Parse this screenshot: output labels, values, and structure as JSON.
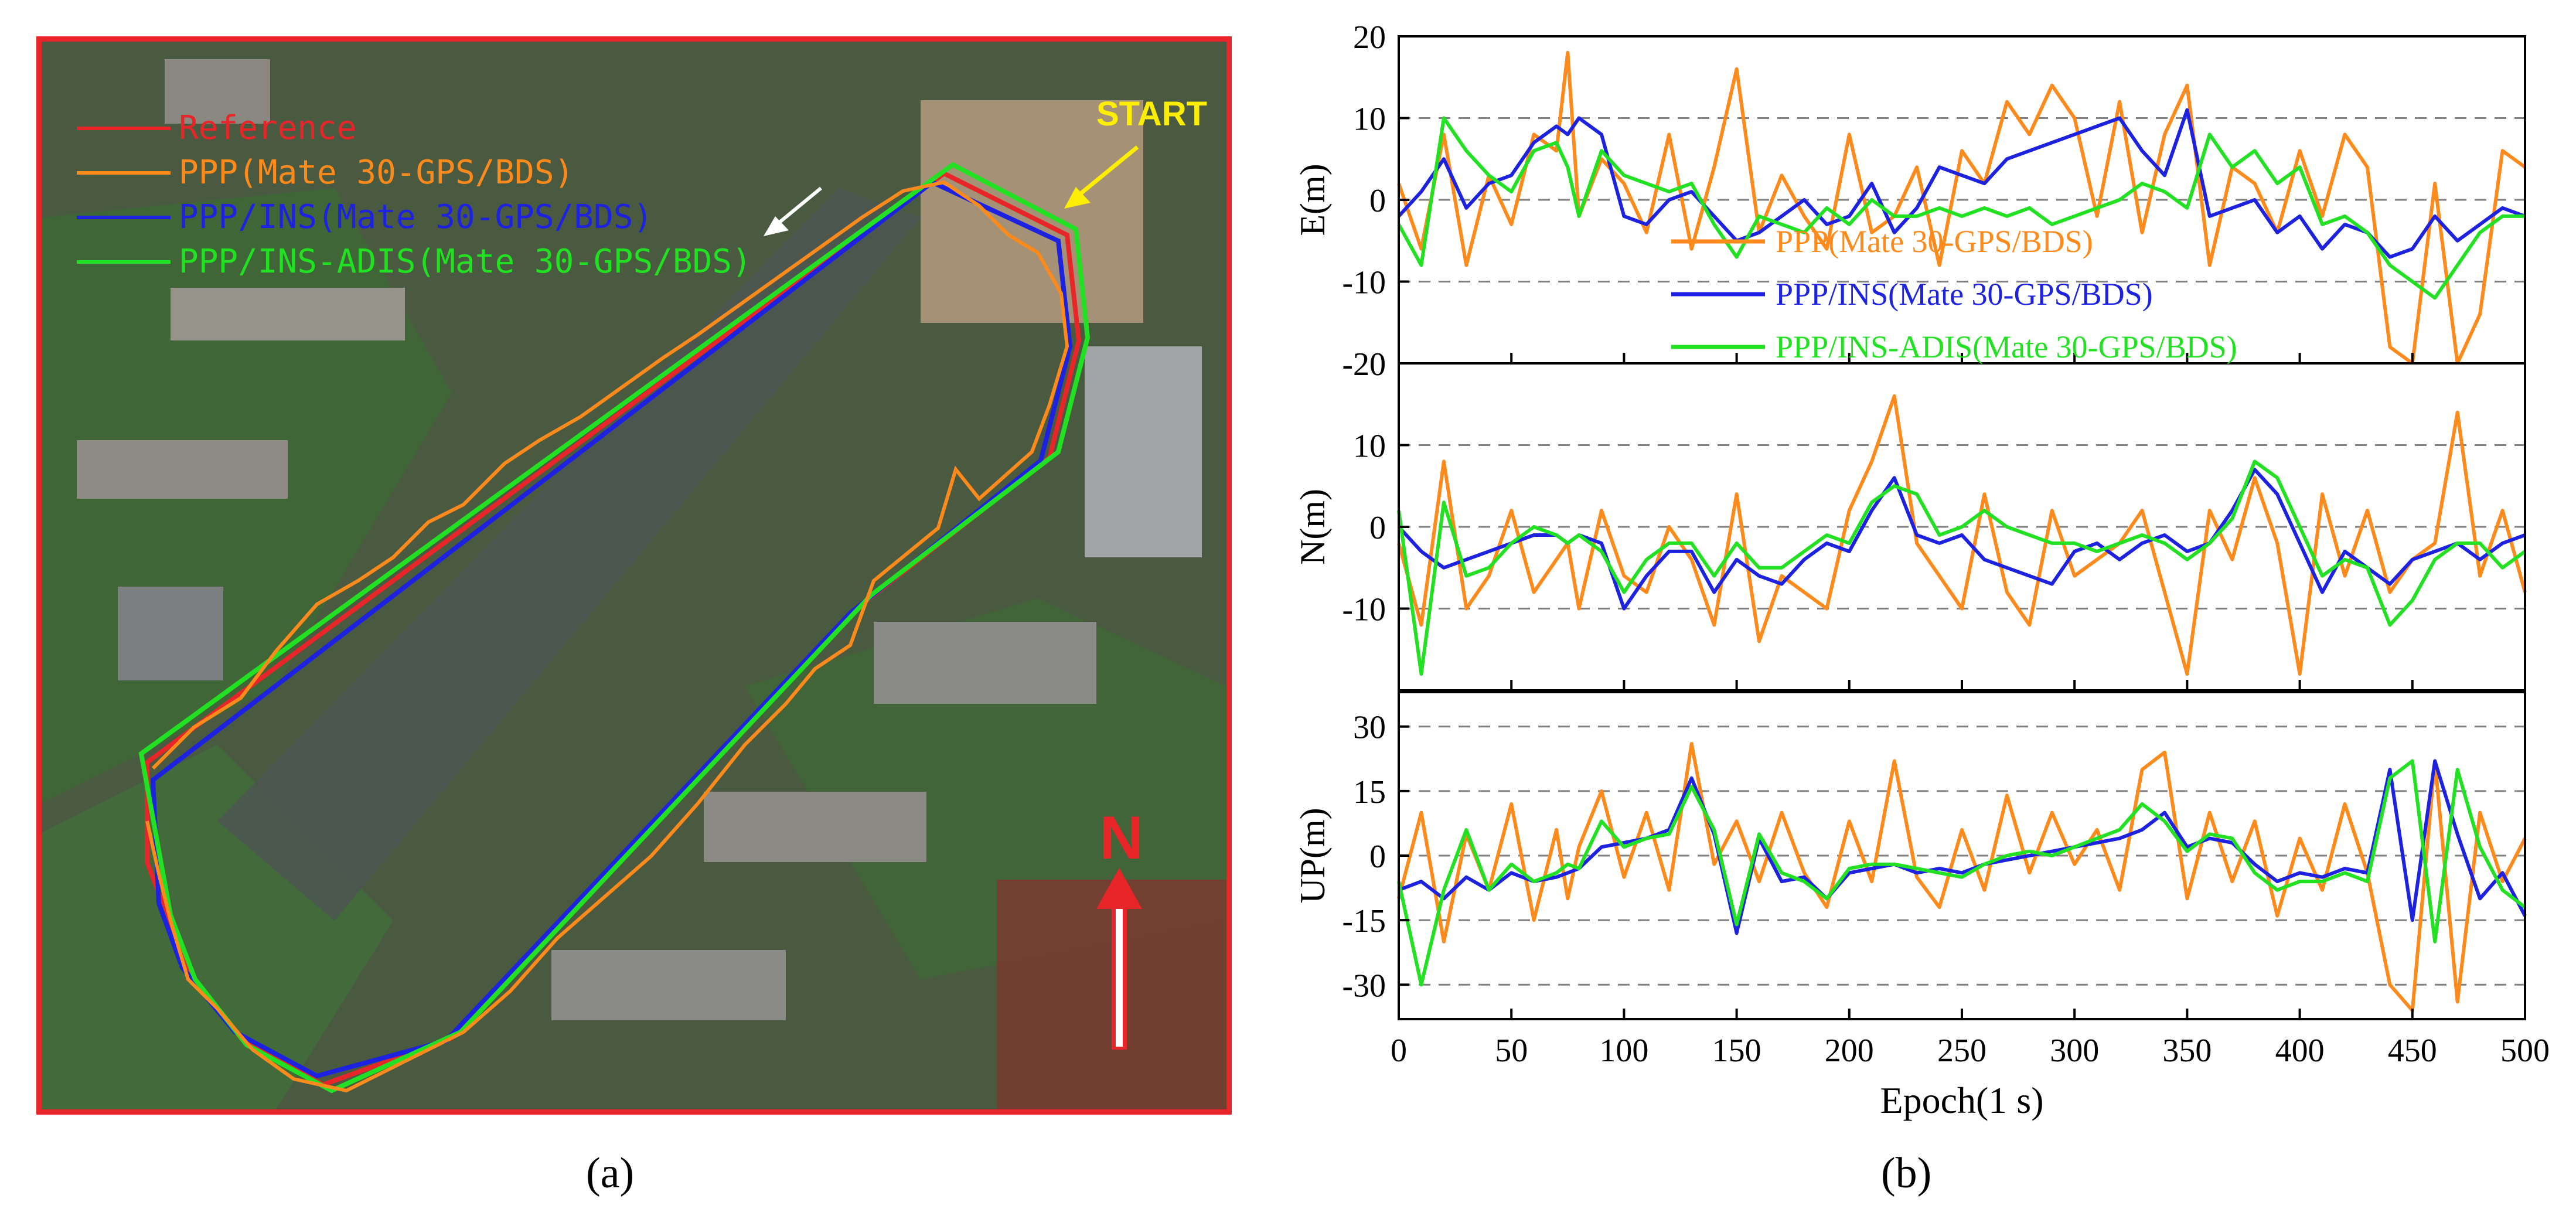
{
  "captions": {
    "a": "(a)",
    "b": "(b)"
  },
  "panel_a": {
    "legend": [
      {
        "label": "Reference",
        "color": "#e8262a"
      },
      {
        "label": "PPP(Mate 30-GPS/BDS)",
        "color": "#ff8a1c"
      },
      {
        "label": "PPP/INS(Mate 30-GPS/BDS)",
        "color": "#1c22e0"
      },
      {
        "label": "PPP/INS-ADIS(Mate 30-GPS/BDS)",
        "color": "#22e022"
      }
    ],
    "start_label": "START",
    "north_label": "N"
  },
  "chart_data": {
    "type": "line",
    "xlabel": "Epoch(1 s)",
    "xlim": [
      0,
      500
    ],
    "xticks": [
      0,
      50,
      100,
      150,
      200,
      250,
      300,
      350,
      400,
      450,
      500
    ],
    "legend_location": "top-panel-center",
    "series_meta": [
      {
        "name": "PPP(Mate 30-GPS/BDS)",
        "color": "#ff8a1c"
      },
      {
        "name": "PPP/INS(Mate 30-GPS/BDS)",
        "color": "#1c22e0"
      },
      {
        "name": "PPP/INS-ADIS(Mate 30-GPS/BDS)",
        "color": "#22e022"
      }
    ],
    "x": [
      0,
      10,
      20,
      30,
      40,
      50,
      60,
      70,
      75,
      80,
      90,
      100,
      110,
      120,
      130,
      140,
      150,
      160,
      170,
      180,
      190,
      200,
      210,
      220,
      230,
      240,
      250,
      260,
      270,
      280,
      290,
      300,
      310,
      320,
      330,
      340,
      350,
      360,
      370,
      380,
      390,
      400,
      410,
      420,
      430,
      440,
      450,
      460,
      470,
      480,
      490,
      500
    ],
    "panels": [
      {
        "ylabel": "E(m)",
        "ylim": [
          -20,
          20
        ],
        "yticks": [
          -20,
          -10,
          0,
          10,
          20
        ],
        "gridlines": [
          -10,
          0,
          10
        ],
        "series": [
          {
            "name": "PPP(Mate 30-GPS/BDS)",
            "values": [
              2,
              -6,
              8,
              -8,
              3,
              -3,
              8,
              6,
              18,
              -2,
              5,
              2,
              -4,
              8,
              -6,
              4,
              16,
              -4,
              3,
              -2,
              -6,
              8,
              -4,
              -2,
              4,
              -8,
              6,
              2,
              12,
              8,
              14,
              10,
              -2,
              12,
              -4,
              8,
              14,
              -8,
              4,
              2,
              -4,
              6,
              -2,
              8,
              4,
              -18,
              -20,
              2,
              -20,
              -14,
              6,
              4
            ]
          },
          {
            "name": "PPP/INS(Mate 30-GPS/BDS)",
            "values": [
              -2,
              1,
              5,
              -1,
              2,
              3,
              7,
              9,
              8,
              10,
              8,
              -2,
              -3,
              0,
              1,
              -2,
              -5,
              -4,
              -2,
              0,
              -3,
              -2,
              2,
              -4,
              -1,
              4,
              3,
              2,
              5,
              6,
              7,
              8,
              9,
              10,
              6,
              3,
              11,
              -2,
              -1,
              0,
              -4,
              -2,
              -6,
              -3,
              -4,
              -7,
              -6,
              -2,
              -5,
              -3,
              -1,
              -2
            ]
          },
          {
            "name": "PPP/INS-ADIS(Mate 30-GPS/BDS)",
            "values": [
              -3,
              -8,
              10,
              6,
              3,
              1,
              6,
              7,
              4,
              -2,
              6,
              3,
              2,
              1,
              2,
              -3,
              -7,
              -2,
              -3,
              -4,
              -1,
              -3,
              0,
              -2,
              -2,
              -1,
              -2,
              -1,
              -2,
              -1,
              -3,
              -2,
              -1,
              0,
              2,
              1,
              -1,
              8,
              4,
              6,
              2,
              4,
              -3,
              -2,
              -4,
              -8,
              -10,
              -12,
              -8,
              -4,
              -2,
              -2
            ]
          }
        ]
      },
      {
        "ylabel": "N(m)",
        "ylim": [
          -20,
          20
        ],
        "yticks": [
          -10,
          0,
          10,
          20
        ],
        "gridlines": [
          -10,
          0,
          10
        ],
        "series": [
          {
            "name": "PPP(Mate 30-GPS/BDS)",
            "values": [
              -2,
              -12,
              8,
              -10,
              -6,
              2,
              -8,
              -4,
              -2,
              -10,
              2,
              -6,
              -8,
              0,
              -4,
              -12,
              4,
              -14,
              -6,
              -8,
              -10,
              2,
              8,
              16,
              -2,
              -6,
              -10,
              4,
              -8,
              -12,
              2,
              -6,
              -4,
              -2,
              2,
              -8,
              -18,
              2,
              -4,
              6,
              -2,
              -18,
              4,
              -6,
              2,
              -8,
              -4,
              -2,
              14,
              -6,
              2,
              -8
            ]
          },
          {
            "name": "PPP/INS(Mate 30-GPS/BDS)",
            "values": [
              0,
              -3,
              -5,
              -4,
              -3,
              -2,
              -1,
              -1,
              -2,
              -1,
              -2,
              -10,
              -6,
              -3,
              -3,
              -8,
              -4,
              -6,
              -7,
              -4,
              -2,
              -3,
              2,
              6,
              -1,
              -2,
              -1,
              -4,
              -5,
              -6,
              -7,
              -3,
              -2,
              -4,
              -2,
              -1,
              -3,
              -2,
              2,
              7,
              4,
              -2,
              -8,
              -3,
              -5,
              -7,
              -4,
              -3,
              -2,
              -4,
              -2,
              -1
            ]
          },
          {
            "name": "PPP/INS-ADIS(Mate 30-GPS/BDS)",
            "values": [
              2,
              -18,
              3,
              -6,
              -5,
              -2,
              0,
              -1,
              -2,
              -1,
              -3,
              -8,
              -4,
              -2,
              -2,
              -6,
              -2,
              -5,
              -5,
              -3,
              -1,
              -2,
              3,
              5,
              4,
              -1,
              0,
              2,
              0,
              -1,
              -2,
              -2,
              -3,
              -2,
              -1,
              -2,
              -4,
              -2,
              1,
              8,
              6,
              0,
              -6,
              -4,
              -5,
              -12,
              -9,
              -4,
              -2,
              -2,
              -5,
              -3
            ]
          }
        ]
      },
      {
        "ylabel": "UP(m)",
        "ylim": [
          -38,
          38
        ],
        "yticks": [
          -30,
          -15,
          0,
          15,
          30
        ],
        "gridlines": [
          -30,
          -15,
          0,
          15,
          30
        ],
        "series": [
          {
            "name": "PPP(Mate 30-GPS/BDS)",
            "values": [
              -10,
              10,
              -20,
              5,
              -8,
              12,
              -15,
              6,
              -10,
              2,
              15,
              -5,
              10,
              -8,
              26,
              -2,
              8,
              -6,
              10,
              -4,
              -12,
              8,
              -6,
              22,
              -5,
              -12,
              6,
              -8,
              14,
              -4,
              10,
              -2,
              6,
              -8,
              20,
              24,
              -10,
              10,
              -6,
              8,
              -14,
              4,
              -8,
              12,
              -4,
              -30,
              -36,
              22,
              -34,
              10,
              -6,
              4
            ]
          },
          {
            "name": "PPP/INS(Mate 30-GPS/BDS)",
            "values": [
              -8,
              -6,
              -10,
              -5,
              -8,
              -4,
              -6,
              -5,
              -4,
              -3,
              2,
              3,
              4,
              6,
              18,
              5,
              -18,
              4,
              -6,
              -5,
              -10,
              -4,
              -3,
              -2,
              -4,
              -3,
              -4,
              -2,
              -1,
              0,
              1,
              2,
              3,
              4,
              6,
              10,
              2,
              4,
              3,
              -2,
              -6,
              -4,
              -5,
              -3,
              -4,
              20,
              -15,
              22,
              5,
              -10,
              -4,
              -14
            ]
          },
          {
            "name": "PPP/INS-ADIS(Mate 30-GPS/BDS)",
            "values": [
              -6,
              -30,
              -8,
              6,
              -8,
              -2,
              -6,
              -4,
              -2,
              -3,
              8,
              2,
              4,
              5,
              16,
              6,
              -16,
              5,
              -4,
              -6,
              -10,
              -3,
              -2,
              -2,
              -3,
              -4,
              -5,
              -2,
              0,
              1,
              0,
              2,
              4,
              6,
              12,
              8,
              1,
              5,
              4,
              -4,
              -8,
              -6,
              -6,
              -4,
              -6,
              18,
              22,
              -20,
              20,
              2,
              -8,
              -12
            ]
          }
        ]
      }
    ]
  }
}
